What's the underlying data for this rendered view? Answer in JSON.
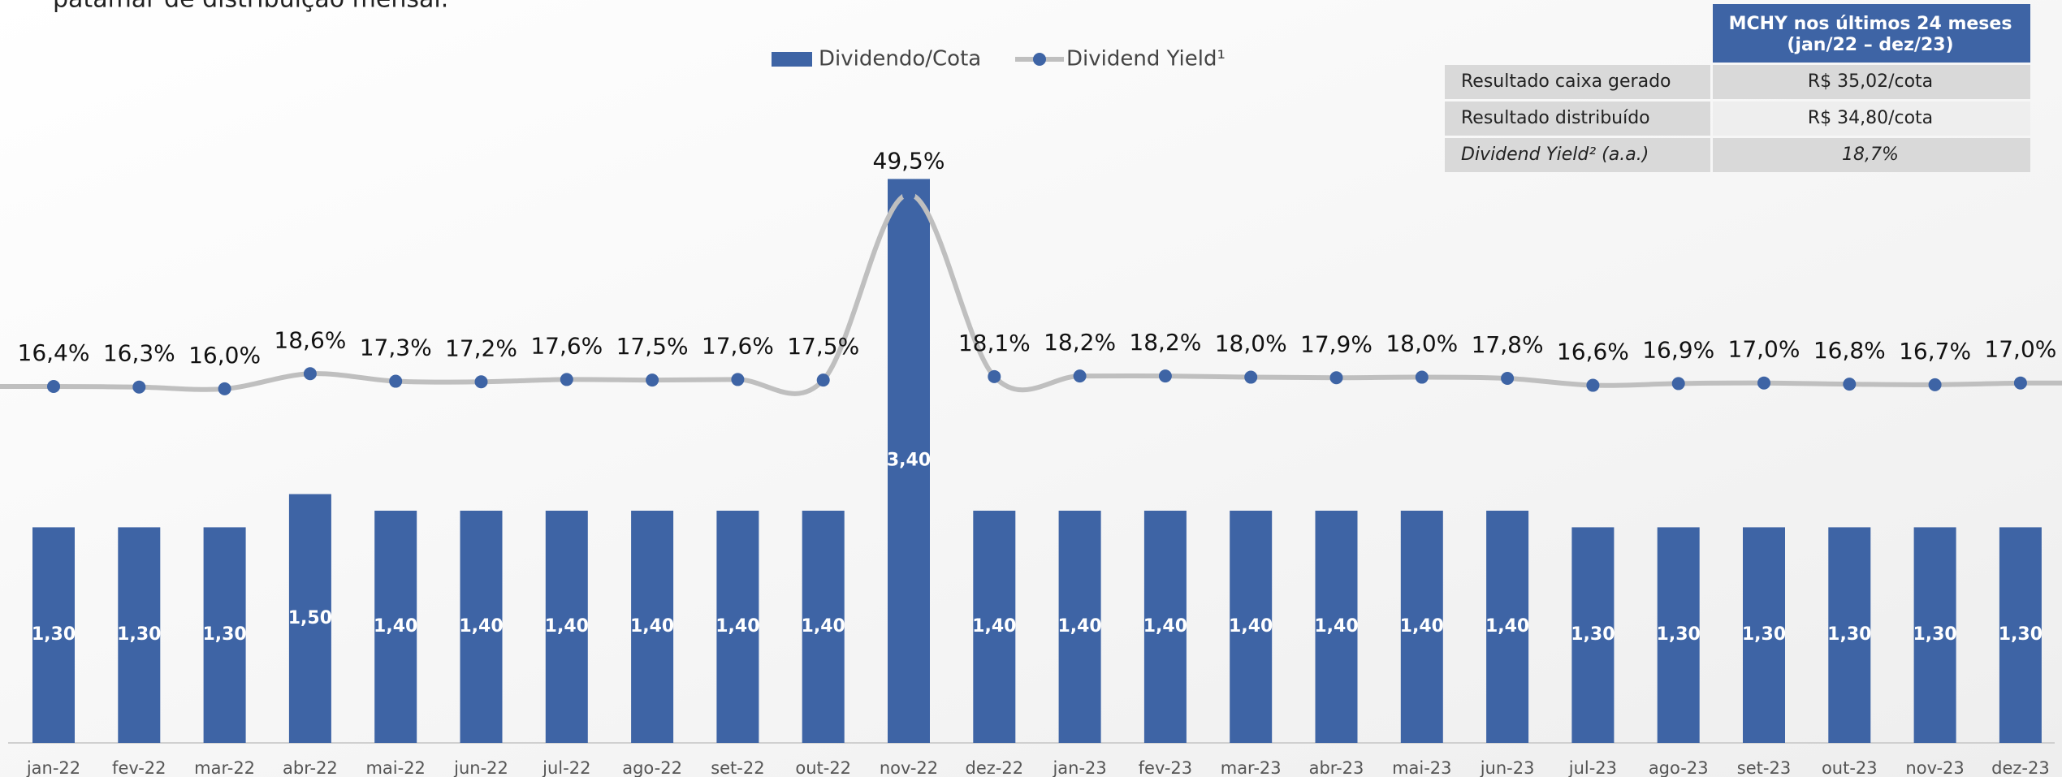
{
  "header_text": "patamar de distribuição mensal.",
  "chart_data": {
    "type": "bar",
    "categories": [
      "jan-22",
      "fev-22",
      "mar-22",
      "abr-22",
      "mai-22",
      "jun-22",
      "jul-22",
      "ago-22",
      "set-22",
      "out-22",
      "nov-22",
      "dez-22",
      "jan-23",
      "fev-23",
      "mar-23",
      "abr-23",
      "mai-23",
      "jun-23",
      "jul-23",
      "ago-23",
      "set-23",
      "out-23",
      "nov-23",
      "dez-23"
    ],
    "series": [
      {
        "name": "Dividendo/Cota",
        "type": "bar",
        "color": "#3e64a5",
        "values": [
          1.3,
          1.3,
          1.3,
          1.5,
          1.4,
          1.4,
          1.4,
          1.4,
          1.4,
          1.4,
          3.4,
          1.4,
          1.4,
          1.4,
          1.4,
          1.4,
          1.4,
          1.4,
          1.3,
          1.3,
          1.3,
          1.3,
          1.3,
          1.3
        ],
        "value_labels": [
          "1,30",
          "1,30",
          "1,30",
          "1,50",
          "1,40",
          "1,40",
          "1,40",
          "1,40",
          "1,40",
          "1,40",
          "3,40",
          "1,40",
          "1,40",
          "1,40",
          "1,40",
          "1,40",
          "1,40",
          "1,40",
          "1,30",
          "1,30",
          "1,30",
          "1,30",
          "1,30",
          "1,30"
        ]
      },
      {
        "name": "Dividend Yield¹",
        "type": "line",
        "axis": "y2",
        "color": "#bfbfbf",
        "marker_color": "#3e64a5",
        "values": [
          16.4,
          16.3,
          16.0,
          18.6,
          17.3,
          17.2,
          17.6,
          17.5,
          17.6,
          17.5,
          49.5,
          18.1,
          18.2,
          18.2,
          18.0,
          17.9,
          18.0,
          17.8,
          16.6,
          16.9,
          17.0,
          16.8,
          16.7,
          17.0
        ],
        "value_labels": [
          "16,4%",
          "16,3%",
          "16,0%",
          "18,6%",
          "17,3%",
          "17,2%",
          "17,6%",
          "17,5%",
          "17,6%",
          "17,5%",
          "49,5%",
          "18,1%",
          "18,2%",
          "18,2%",
          "18,0%",
          "17,9%",
          "18,0%",
          "17,8%",
          "16,6%",
          "16,9%",
          "17,0%",
          "16,8%",
          "16,7%",
          "17,0%"
        ]
      }
    ],
    "ylim": [
      0,
      3.5
    ],
    "y2lim": [
      -45,
      55
    ],
    "legend": "top"
  },
  "table": {
    "title_lines": [
      "MCHY nos últimos 24 meses",
      "(jan/22 – dez/23)"
    ],
    "rows": [
      [
        "Resultado caixa gerado",
        "R$ 35,02/cota"
      ],
      [
        "Resultado distribuído",
        "R$ 34,80/cota"
      ],
      [
        "Dividend Yield² (a.a.)",
        "18,7%"
      ]
    ]
  }
}
